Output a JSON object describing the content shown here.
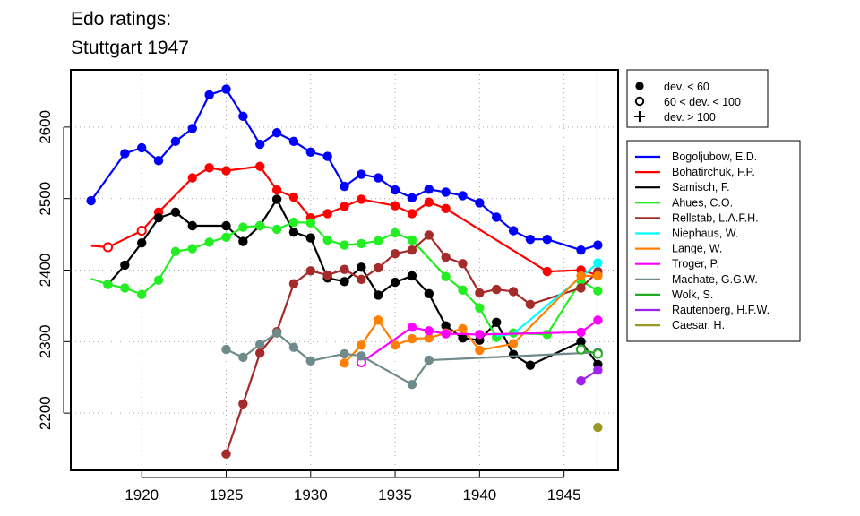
{
  "chart_data": {
    "type": "line",
    "title": [
      "Edo ratings:",
      "Stuttgart 1947"
    ],
    "xlabel": "",
    "ylabel": "",
    "xlim": [
      1915.8,
      1948.2
    ],
    "ylim": [
      2120,
      2680
    ],
    "xticks": [
      1920,
      1925,
      1930,
      1935,
      1940,
      1945
    ],
    "yticks": [
      2200,
      2300,
      2400,
      2500,
      2600
    ],
    "grid": "dotted",
    "reference_line_x": 1947,
    "marker_legend": {
      "placement": "top-right outside plot",
      "entries": [
        {
          "symbol": "filled-circle",
          "label": "dev. < 60"
        },
        {
          "symbol": "open-circle",
          "label": "60 < dev. < 100"
        },
        {
          "symbol": "plus",
          "label": "dev. > 100"
        }
      ]
    },
    "series_legend_placement": "right outside plot",
    "series": [
      {
        "name": "Bogoljubow, E.D.",
        "color": "#0000ff",
        "points": [
          {
            "x": 1917,
            "y": 2497,
            "m": "filled"
          },
          {
            "x": 1919,
            "y": 2563,
            "m": "filled"
          },
          {
            "x": 1920,
            "y": 2571,
            "m": "filled"
          },
          {
            "x": 1921,
            "y": 2553,
            "m": "filled"
          },
          {
            "x": 1922,
            "y": 2580,
            "m": "filled"
          },
          {
            "x": 1923,
            "y": 2598,
            "m": "filled"
          },
          {
            "x": 1924,
            "y": 2645,
            "m": "filled"
          },
          {
            "x": 1925,
            "y": 2653,
            "m": "filled"
          },
          {
            "x": 1926,
            "y": 2615,
            "m": "filled"
          },
          {
            "x": 1927,
            "y": 2576,
            "m": "filled"
          },
          {
            "x": 1928,
            "y": 2592,
            "m": "filled"
          },
          {
            "x": 1929,
            "y": 2580,
            "m": "filled"
          },
          {
            "x": 1930,
            "y": 2565,
            "m": "filled"
          },
          {
            "x": 1931,
            "y": 2559,
            "m": "filled"
          },
          {
            "x": 1932,
            "y": 2517,
            "m": "filled"
          },
          {
            "x": 1933,
            "y": 2534,
            "m": "filled"
          },
          {
            "x": 1934,
            "y": 2529,
            "m": "filled"
          },
          {
            "x": 1935,
            "y": 2512,
            "m": "filled"
          },
          {
            "x": 1936,
            "y": 2501,
            "m": "filled"
          },
          {
            "x": 1937,
            "y": 2513,
            "m": "filled"
          },
          {
            "x": 1938,
            "y": 2509,
            "m": "filled"
          },
          {
            "x": 1939,
            "y": 2504,
            "m": "filled"
          },
          {
            "x": 1940,
            "y": 2494,
            "m": "filled"
          },
          {
            "x": 1941,
            "y": 2474,
            "m": "filled"
          },
          {
            "x": 1942,
            "y": 2455,
            "m": "filled"
          },
          {
            "x": 1943,
            "y": 2443,
            "m": "filled"
          },
          {
            "x": 1944,
            "y": 2443,
            "m": "filled"
          },
          {
            "x": 1946,
            "y": 2428,
            "m": "filled"
          },
          {
            "x": 1947,
            "y": 2435,
            "m": "filled"
          }
        ]
      },
      {
        "name": "Bohatirchuk, F.P.",
        "color": "#ff0000",
        "points": [
          {
            "x": 1917,
            "y": 2434,
            "m": "none"
          },
          {
            "x": 1918,
            "y": 2432,
            "m": "open"
          },
          {
            "x": 1920,
            "y": 2455,
            "m": "open"
          },
          {
            "x": 1921,
            "y": 2481,
            "m": "filled"
          },
          {
            "x": 1923,
            "y": 2529,
            "m": "filled"
          },
          {
            "x": 1924,
            "y": 2543,
            "m": "filled"
          },
          {
            "x": 1925,
            "y": 2539,
            "m": "filled"
          },
          {
            "x": 1927,
            "y": 2545,
            "m": "filled"
          },
          {
            "x": 1928,
            "y": 2512,
            "m": "filled"
          },
          {
            "x": 1929,
            "y": 2502,
            "m": "filled"
          },
          {
            "x": 1930,
            "y": 2473,
            "m": "filled"
          },
          {
            "x": 1931,
            "y": 2479,
            "m": "filled"
          },
          {
            "x": 1932,
            "y": 2489,
            "m": "filled"
          },
          {
            "x": 1933,
            "y": 2499,
            "m": "filled"
          },
          {
            "x": 1935,
            "y": 2490,
            "m": "filled"
          },
          {
            "x": 1936,
            "y": 2479,
            "m": "filled"
          },
          {
            "x": 1937,
            "y": 2495,
            "m": "filled"
          },
          {
            "x": 1938,
            "y": 2486,
            "m": "filled"
          },
          {
            "x": 1944,
            "y": 2398,
            "m": "filled"
          },
          {
            "x": 1946,
            "y": 2400,
            "m": "filled"
          },
          {
            "x": 1947,
            "y": 2393,
            "m": "filled"
          }
        ]
      },
      {
        "name": "Samisch, F.",
        "color": "#000000",
        "points": [
          {
            "x": 1918,
            "y": 2380,
            "m": "filled"
          },
          {
            "x": 1919,
            "y": 2407,
            "m": "filled"
          },
          {
            "x": 1920,
            "y": 2438,
            "m": "filled"
          },
          {
            "x": 1921,
            "y": 2473,
            "m": "filled"
          },
          {
            "x": 1922,
            "y": 2481,
            "m": "filled"
          },
          {
            "x": 1923,
            "y": 2462,
            "m": "filled"
          },
          {
            "x": 1925,
            "y": 2462,
            "m": "filled"
          },
          {
            "x": 1926,
            "y": 2440,
            "m": "filled"
          },
          {
            "x": 1927,
            "y": 2462,
            "m": "filled"
          },
          {
            "x": 1928,
            "y": 2499,
            "m": "filled"
          },
          {
            "x": 1929,
            "y": 2453,
            "m": "filled"
          },
          {
            "x": 1930,
            "y": 2445,
            "m": "filled"
          },
          {
            "x": 1931,
            "y": 2389,
            "m": "filled"
          },
          {
            "x": 1932,
            "y": 2384,
            "m": "filled"
          },
          {
            "x": 1933,
            "y": 2404,
            "m": "filled"
          },
          {
            "x": 1934,
            "y": 2365,
            "m": "filled"
          },
          {
            "x": 1935,
            "y": 2383,
            "m": "filled"
          },
          {
            "x": 1936,
            "y": 2392,
            "m": "filled"
          },
          {
            "x": 1937,
            "y": 2367,
            "m": "filled"
          },
          {
            "x": 1938,
            "y": 2322,
            "m": "filled"
          },
          {
            "x": 1939,
            "y": 2305,
            "m": "filled"
          },
          {
            "x": 1940,
            "y": 2302,
            "m": "filled"
          },
          {
            "x": 1941,
            "y": 2327,
            "m": "filled"
          },
          {
            "x": 1942,
            "y": 2282,
            "m": "filled"
          },
          {
            "x": 1943,
            "y": 2267,
            "m": "filled"
          },
          {
            "x": 1946,
            "y": 2300,
            "m": "filled"
          },
          {
            "x": 1947,
            "y": 2268,
            "m": "filled"
          }
        ]
      },
      {
        "name": "Ahues, C.O.",
        "color": "#22ee22",
        "points": [
          {
            "x": 1917,
            "y": 2388,
            "m": "none"
          },
          {
            "x": 1918,
            "y": 2380,
            "m": "filled"
          },
          {
            "x": 1919,
            "y": 2375,
            "m": "filled"
          },
          {
            "x": 1920,
            "y": 2366,
            "m": "filled"
          },
          {
            "x": 1921,
            "y": 2386,
            "m": "filled"
          },
          {
            "x": 1922,
            "y": 2426,
            "m": "filled"
          },
          {
            "x": 1923,
            "y": 2430,
            "m": "filled"
          },
          {
            "x": 1924,
            "y": 2439,
            "m": "filled"
          },
          {
            "x": 1925,
            "y": 2446,
            "m": "filled"
          },
          {
            "x": 1926,
            "y": 2460,
            "m": "filled"
          },
          {
            "x": 1927,
            "y": 2462,
            "m": "filled"
          },
          {
            "x": 1928,
            "y": 2457,
            "m": "filled"
          },
          {
            "x": 1929,
            "y": 2467,
            "m": "filled"
          },
          {
            "x": 1930,
            "y": 2466,
            "m": "filled"
          },
          {
            "x": 1931,
            "y": 2442,
            "m": "filled"
          },
          {
            "x": 1932,
            "y": 2435,
            "m": "filled"
          },
          {
            "x": 1933,
            "y": 2437,
            "m": "filled"
          },
          {
            "x": 1934,
            "y": 2441,
            "m": "filled"
          },
          {
            "x": 1935,
            "y": 2452,
            "m": "filled"
          },
          {
            "x": 1936,
            "y": 2442,
            "m": "filled"
          },
          {
            "x": 1938,
            "y": 2391,
            "m": "filled"
          },
          {
            "x": 1939,
            "y": 2372,
            "m": "filled"
          },
          {
            "x": 1940,
            "y": 2347,
            "m": "filled"
          },
          {
            "x": 1941,
            "y": 2306,
            "m": "filled"
          },
          {
            "x": 1942,
            "y": 2312,
            "m": "filled"
          },
          {
            "x": 1944,
            "y": 2310,
            "m": "filled"
          },
          {
            "x": 1946,
            "y": 2385,
            "m": "filled"
          },
          {
            "x": 1947,
            "y": 2371,
            "m": "filled"
          }
        ]
      },
      {
        "name": "Rellstab, L.A.F.H.",
        "color": "#a52a2a",
        "points": [
          {
            "x": 1925,
            "y": 2143,
            "m": "filled"
          },
          {
            "x": 1926,
            "y": 2213,
            "m": "filled"
          },
          {
            "x": 1927,
            "y": 2284,
            "m": "filled"
          },
          {
            "x": 1928,
            "y": 2314,
            "m": "filled"
          },
          {
            "x": 1929,
            "y": 2381,
            "m": "filled"
          },
          {
            "x": 1930,
            "y": 2399,
            "m": "filled"
          },
          {
            "x": 1931,
            "y": 2393,
            "m": "filled"
          },
          {
            "x": 1932,
            "y": 2401,
            "m": "filled"
          },
          {
            "x": 1933,
            "y": 2387,
            "m": "filled"
          },
          {
            "x": 1934,
            "y": 2403,
            "m": "filled"
          },
          {
            "x": 1935,
            "y": 2423,
            "m": "filled"
          },
          {
            "x": 1936,
            "y": 2428,
            "m": "filled"
          },
          {
            "x": 1937,
            "y": 2449,
            "m": "filled"
          },
          {
            "x": 1938,
            "y": 2418,
            "m": "filled"
          },
          {
            "x": 1939,
            "y": 2409,
            "m": "filled"
          },
          {
            "x": 1940,
            "y": 2368,
            "m": "filled"
          },
          {
            "x": 1941,
            "y": 2373,
            "m": "filled"
          },
          {
            "x": 1942,
            "y": 2370,
            "m": "filled"
          },
          {
            "x": 1943,
            "y": 2352,
            "m": "filled"
          },
          {
            "x": 1946,
            "y": 2375,
            "m": "filled"
          },
          {
            "x": 1947,
            "y": 2398,
            "m": "filled"
          }
        ]
      },
      {
        "name": "Niephaus, W.",
        "color": "#00ffff",
        "points": [
          {
            "x": 1941,
            "y": 2308,
            "m": "none"
          },
          {
            "x": 1942,
            "y": 2311,
            "m": "none"
          },
          {
            "x": 1947,
            "y": 2410,
            "m": "filled"
          }
        ]
      },
      {
        "name": "Lange, W.",
        "color": "#ff8000",
        "points": [
          {
            "x": 1932,
            "y": 2270,
            "m": "filled"
          },
          {
            "x": 1933,
            "y": 2295,
            "m": "filled"
          },
          {
            "x": 1934,
            "y": 2330,
            "m": "filled"
          },
          {
            "x": 1935,
            "y": 2295,
            "m": "filled"
          },
          {
            "x": 1936,
            "y": 2304,
            "m": "filled"
          },
          {
            "x": 1937,
            "y": 2305,
            "m": "filled"
          },
          {
            "x": 1938,
            "y": 2312,
            "m": "filled"
          },
          {
            "x": 1939,
            "y": 2318,
            "m": "filled"
          },
          {
            "x": 1940,
            "y": 2288,
            "m": "filled"
          },
          {
            "x": 1942,
            "y": 2297,
            "m": "filled"
          },
          {
            "x": 1946,
            "y": 2392,
            "m": "filled"
          },
          {
            "x": 1947,
            "y": 2392,
            "m": "filled"
          }
        ]
      },
      {
        "name": "Troger, P.",
        "color": "#ff00ff",
        "points": [
          {
            "x": 1933,
            "y": 2271,
            "m": "open"
          },
          {
            "x": 1936,
            "y": 2320,
            "m": "filled"
          },
          {
            "x": 1937,
            "y": 2315,
            "m": "filled"
          },
          {
            "x": 1938,
            "y": 2311,
            "m": "filled"
          },
          {
            "x": 1940,
            "y": 2310,
            "m": "filled"
          },
          {
            "x": 1946,
            "y": 2313,
            "m": "filled"
          },
          {
            "x": 1947,
            "y": 2330,
            "m": "filled"
          }
        ]
      },
      {
        "name": "Machate, G.G.W.",
        "color": "#6f8a8a",
        "points": [
          {
            "x": 1925,
            "y": 2289,
            "m": "filled"
          },
          {
            "x": 1926,
            "y": 2278,
            "m": "filled"
          },
          {
            "x": 1927,
            "y": 2296,
            "m": "filled"
          },
          {
            "x": 1928,
            "y": 2312,
            "m": "filled"
          },
          {
            "x": 1929,
            "y": 2292,
            "m": "filled"
          },
          {
            "x": 1930,
            "y": 2273,
            "m": "filled"
          },
          {
            "x": 1932,
            "y": 2283,
            "m": "filled"
          },
          {
            "x": 1933,
            "y": 2280,
            "m": "filled"
          },
          {
            "x": 1936,
            "y": 2240,
            "m": "filled"
          },
          {
            "x": 1937,
            "y": 2274,
            "m": "filled"
          },
          {
            "x": 1947,
            "y": 2285,
            "m": "filled"
          }
        ]
      },
      {
        "name": "Wolk, S.",
        "color": "#22aa22",
        "points": [
          {
            "x": 1946,
            "y": 2289,
            "m": "open"
          },
          {
            "x": 1947,
            "y": 2283,
            "m": "open"
          }
        ]
      },
      {
        "name": "Rautenberg, H.F.W.",
        "color": "#a020f0",
        "points": [
          {
            "x": 1946,
            "y": 2245,
            "m": "filled"
          },
          {
            "x": 1947,
            "y": 2260,
            "m": "filled"
          }
        ]
      },
      {
        "name": "Caesar, H.",
        "color": "#999922",
        "points": [
          {
            "x": 1947,
            "y": 2180,
            "m": "filled"
          }
        ]
      }
    ]
  }
}
